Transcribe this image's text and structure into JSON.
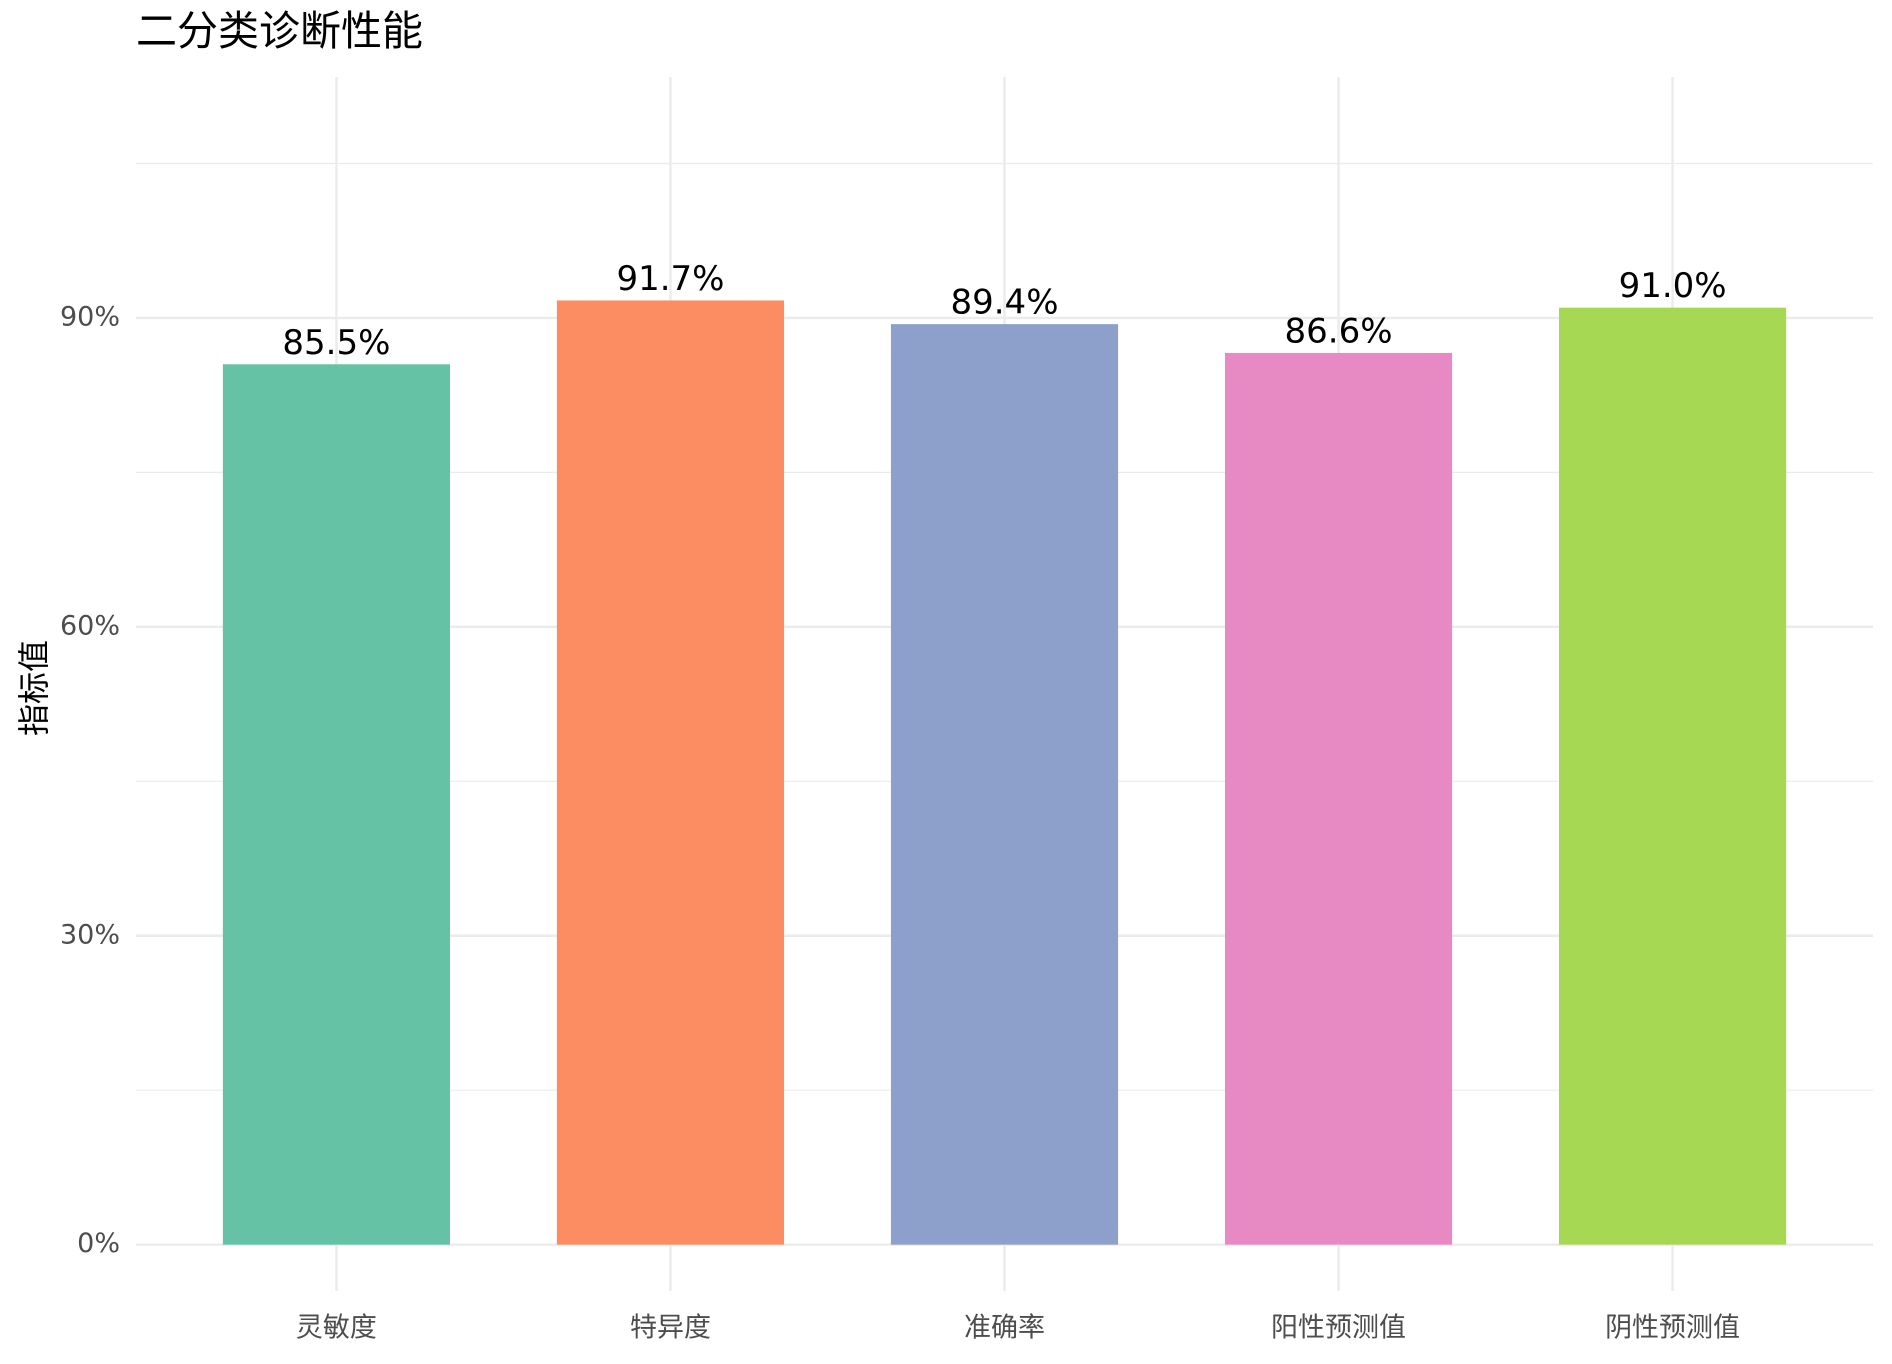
{
  "chart_data": {
    "type": "bar",
    "title": "二分类诊断性能",
    "y_label": "指标值",
    "categories": [
      "灵敏度",
      "特异度",
      "准确率",
      "阳性预测值",
      "阴性预测值"
    ],
    "values": [
      85.5,
      91.7,
      89.4,
      86.6,
      91.0
    ],
    "value_labels": [
      "85.5%",
      "91.7%",
      "89.4%",
      "86.6%",
      "91.0%"
    ],
    "colors": [
      "#66c2a5",
      "#fc8d62",
      "#8da0cb",
      "#e78ac3",
      "#a6d854"
    ],
    "ylim": [
      -4.5,
      113.4
    ],
    "yticks": [
      {
        "value": 0,
        "label": "0%"
      },
      {
        "value": 30,
        "label": "30%"
      },
      {
        "value": 60,
        "label": "60%"
      },
      {
        "value": 90,
        "label": "90%"
      }
    ],
    "minor_yticks": [
      15,
      45,
      75,
      105
    ],
    "grid": true
  }
}
